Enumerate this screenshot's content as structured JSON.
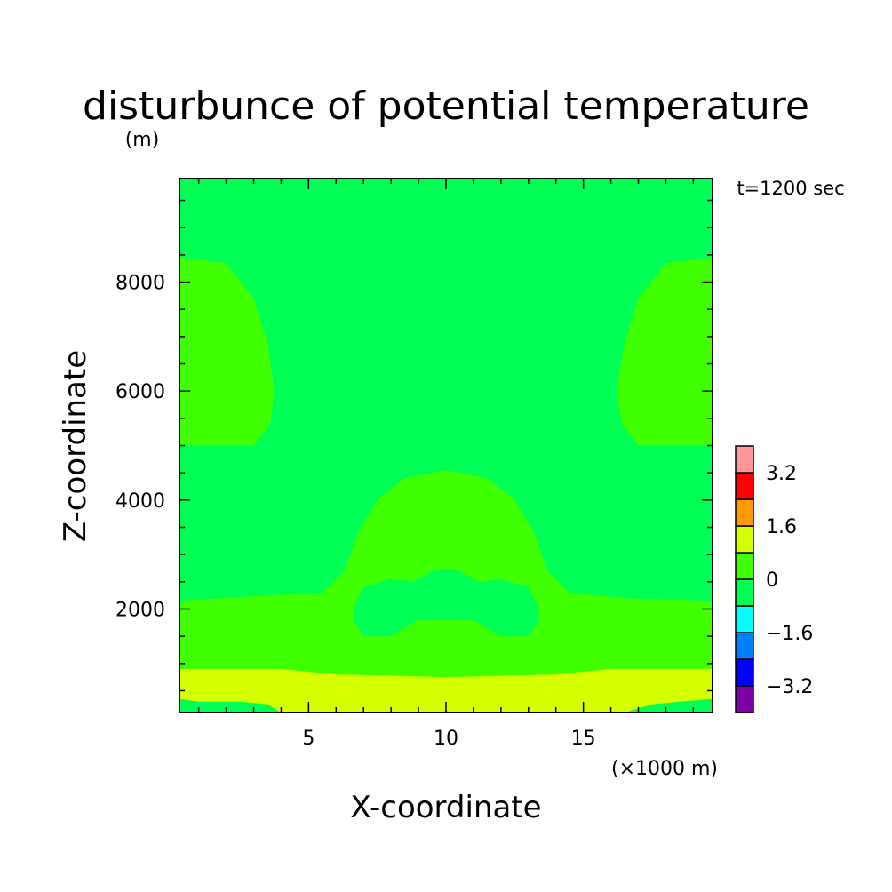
{
  "chart_data": {
    "type": "contour",
    "title": "disturbunce of potential temperature",
    "ylabel_unit": "(m)",
    "time_label": "t=1200 sec",
    "xlabel": "X-coordinate",
    "ylabel": "Z-coordinate",
    "x_unit": "(×1000 m)",
    "xlim": [
      0.3,
      19.7
    ],
    "ylim": [
      100,
      9900
    ],
    "x_ticks": [
      5,
      10,
      15
    ],
    "x_tick_labels": [
      "5",
      "10",
      "15"
    ],
    "y_ticks": [
      2000,
      4000,
      6000,
      8000
    ],
    "y_tick_labels": [
      "2000",
      "4000",
      "6000",
      "8000"
    ],
    "background_color": "#00ff55",
    "colorbar": {
      "levels": [
        "-4.0",
        "-3.2",
        "-2.4",
        "-1.6",
        "-0.8",
        "0",
        "0.8",
        "1.6",
        "2.4",
        "3.2",
        "4.0"
      ],
      "labels": [
        "−3.2",
        "−1.6",
        "0",
        "1.6",
        "3.2"
      ],
      "colors": [
        "#7f00a8",
        "#0000ff",
        "#0080ff",
        "#00ffff",
        "#00ff55",
        "#40ff00",
        "#d4ff00",
        "#ff9900",
        "#ff0000",
        "#ff9999"
      ]
    },
    "regions": [
      {
        "color": "#40ff00",
        "points": [
          [
            0.3,
            8450
          ],
          [
            2.0,
            8350
          ],
          [
            3.0,
            7700
          ],
          [
            3.5,
            6900
          ],
          [
            3.75,
            6000
          ],
          [
            3.6,
            5400
          ],
          [
            3.0,
            5000
          ],
          [
            0.3,
            5000
          ]
        ]
      },
      {
        "color": "#40ff00",
        "points": [
          [
            19.7,
            8450
          ],
          [
            18.0,
            8350
          ],
          [
            17.0,
            7700
          ],
          [
            16.5,
            6900
          ],
          [
            16.2,
            6000
          ],
          [
            16.4,
            5400
          ],
          [
            17.0,
            5000
          ],
          [
            19.7,
            5000
          ]
        ]
      },
      {
        "color": "#40ff00",
        "points": [
          [
            0.3,
            2150
          ],
          [
            3.5,
            2250
          ],
          [
            5.5,
            2300
          ],
          [
            6.3,
            2700
          ],
          [
            6.8,
            3400
          ],
          [
            7.5,
            4000
          ],
          [
            8.5,
            4400
          ],
          [
            10.0,
            4550
          ],
          [
            11.5,
            4400
          ],
          [
            12.5,
            4000
          ],
          [
            13.2,
            3400
          ],
          [
            13.7,
            2700
          ],
          [
            14.5,
            2300
          ],
          [
            16.5,
            2200
          ],
          [
            19.7,
            2150
          ],
          [
            19.7,
            900
          ],
          [
            16.0,
            900
          ],
          [
            14.0,
            800
          ],
          [
            10.0,
            750
          ],
          [
            6.0,
            800
          ],
          [
            4.0,
            900
          ],
          [
            0.3,
            900
          ]
        ]
      },
      {
        "color": "#00ff55",
        "points": [
          [
            7.0,
            2400
          ],
          [
            8.0,
            2550
          ],
          [
            8.8,
            2500
          ],
          [
            9.5,
            2700
          ],
          [
            10.0,
            2750
          ],
          [
            10.5,
            2700
          ],
          [
            11.2,
            2500
          ],
          [
            12.0,
            2550
          ],
          [
            13.0,
            2400
          ],
          [
            13.3,
            2100
          ],
          [
            13.4,
            1800
          ],
          [
            13.0,
            1500
          ],
          [
            12.0,
            1500
          ],
          [
            11.0,
            1800
          ],
          [
            9.0,
            1800
          ],
          [
            8.0,
            1500
          ],
          [
            7.0,
            1500
          ],
          [
            6.6,
            1800
          ],
          [
            6.7,
            2100
          ]
        ]
      },
      {
        "color": "#d4ff00",
        "points": [
          [
            0.3,
            900
          ],
          [
            4.0,
            900
          ],
          [
            6.0,
            800
          ],
          [
            10.0,
            750
          ],
          [
            14.0,
            800
          ],
          [
            16.0,
            900
          ],
          [
            19.7,
            900
          ],
          [
            19.7,
            350
          ],
          [
            18.5,
            300
          ],
          [
            17.5,
            250
          ],
          [
            16.5,
            100
          ],
          [
            4.0,
            100
          ],
          [
            3.5,
            250
          ],
          [
            2.5,
            300
          ],
          [
            1.0,
            300
          ],
          [
            0.3,
            350
          ]
        ]
      },
      {
        "color": "#ff9900",
        "points": [
          [
            9.9,
            100
          ],
          [
            10.0,
            160
          ],
          [
            10.1,
            100
          ]
        ]
      }
    ]
  }
}
